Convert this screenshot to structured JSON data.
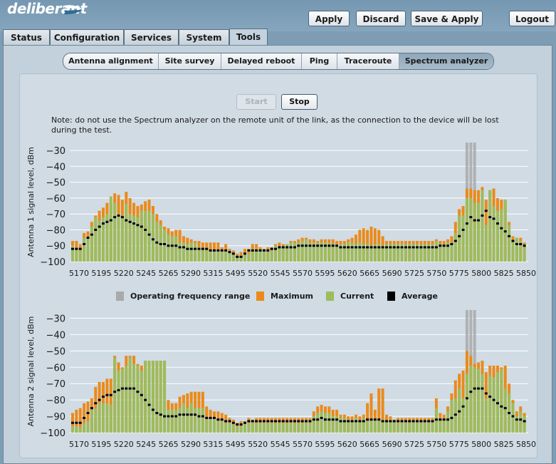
{
  "app": {
    "logo_text": "deliberant"
  },
  "header_buttons": {
    "apply": "Apply",
    "discard": "Discard",
    "save_apply": "Save & Apply",
    "logout": "Logout"
  },
  "main_tabs": [
    "Status",
    "Configuration",
    "Services",
    "System",
    "Tools"
  ],
  "main_tab_active": "Tools",
  "sub_tabs": [
    "Antenna alignment",
    "Site survey",
    "Delayed reboot",
    "Ping",
    "Traceroute",
    "Spectrum analyzer"
  ],
  "sub_tab_active": "Spectrum analyzer",
  "controls": {
    "start": "Start",
    "stop": "Stop",
    "start_enabled": false
  },
  "note": "Note: do not use the Spectrum analyzer on the remote unit of the link, as the connection to the device will be lost during the test.",
  "legend": [
    "Operating frequency range",
    "Maximum",
    "Current",
    "Average"
  ],
  "colors": {
    "operating": "#a9a9a9",
    "maximum": "#ea8a1a",
    "current": "#9dbc5b",
    "average": "#000000",
    "grid": "#ffffff",
    "background": "#d0dbe4"
  },
  "chart_data": [
    {
      "type": "bar",
      "ylabel": "Antenna 1 signal level, dBm",
      "ylim": [
        -100,
        -25
      ],
      "yticks": [
        -30,
        -40,
        -50,
        -60,
        -70,
        -80,
        -90,
        -100
      ],
      "xtick_labels": [
        "5170",
        "5195",
        "5220",
        "5245",
        "5265",
        "5290",
        "5315",
        "5495",
        "5520",
        "5545",
        "5570",
        "5595",
        "5620",
        "5665",
        "5690",
        "5725",
        "5750",
        "5775",
        "5800",
        "5825",
        "5850"
      ],
      "operating_bins": [
        103,
        104,
        105
      ],
      "series": [
        {
          "name": "Maximum",
          "values": [
            -87,
            -87,
            -89,
            -82,
            -81,
            -75,
            -71,
            -68,
            -66,
            -63,
            -63,
            -57,
            -58,
            -61,
            -56,
            -60,
            -63,
            -65,
            -64,
            -62,
            -61,
            -65,
            -70,
            -74,
            -78,
            -79,
            -81,
            -80,
            -80,
            -84,
            -85,
            -86,
            -87,
            -87,
            -88,
            -88,
            -88,
            -88,
            -88,
            -91,
            -89,
            -92,
            -93,
            -95,
            -94,
            -92,
            -92,
            -89,
            -89,
            -91,
            -92,
            -91,
            -91,
            -89,
            -88,
            -89,
            -89,
            -87,
            -87,
            -86,
            -85,
            -85,
            -86,
            -86,
            -87,
            -86,
            -86,
            -86,
            -86,
            -87,
            -87,
            -87,
            -86,
            -85,
            -83,
            -80,
            -79,
            -80,
            -78,
            -79,
            -80,
            -84,
            -87,
            -87,
            -87,
            -87,
            -87,
            -87,
            -87,
            -87,
            -87,
            -87,
            -87,
            -87,
            -87,
            -86,
            -87,
            -87,
            -86,
            -84,
            -75,
            -67,
            -65,
            -54,
            -54,
            -55,
            -55,
            -53,
            -61,
            -55,
            -54,
            -60,
            -61,
            -61,
            -75,
            -84,
            -85,
            -85,
            -88
          ]
        },
        {
          "name": "Current",
          "values": [
            -90,
            -92,
            -93,
            -85,
            -85,
            -78,
            -72,
            -74,
            -72,
            -70,
            -59,
            -63,
            -70,
            -71,
            -64,
            -70,
            -71,
            -72,
            -68,
            -68,
            -68,
            -70,
            -75,
            -77,
            -80,
            -83,
            -84,
            -84,
            -88,
            -88,
            -89,
            -88,
            -88,
            -91,
            -92,
            -91,
            -93,
            -93,
            -93,
            -93,
            -93,
            -93,
            -95,
            -96,
            -96,
            -95,
            -95,
            -92,
            -92,
            -93,
            -93,
            -93,
            -93,
            -90,
            -90,
            -90,
            -89,
            -88,
            -88,
            -88,
            -87,
            -86,
            -88,
            -88,
            -88,
            -88,
            -88,
            -88,
            -89,
            -89,
            -89,
            -89,
            -88,
            -88,
            -89,
            -88,
            -89,
            -89,
            -90,
            -89,
            -89,
            -90,
            -89,
            -89,
            -89,
            -89,
            -89,
            -89,
            -89,
            -89,
            -89,
            -89,
            -89,
            -89,
            -89,
            -87,
            -89,
            -89,
            -88,
            -88,
            -82,
            -71,
            -71,
            -60,
            -60,
            -63,
            -63,
            -55,
            -77,
            -55,
            -65,
            -68,
            -67,
            -61,
            -77,
            -87,
            -85,
            -87,
            -90
          ]
        },
        {
          "name": "Average",
          "values": [
            -92,
            -92,
            -92,
            -89,
            -85,
            -83,
            -80,
            -78,
            -76,
            -75,
            -74,
            -72,
            -71,
            -72,
            -74,
            -75,
            -76,
            -77,
            -78,
            -80,
            -83,
            -86,
            -88,
            -89,
            -89,
            -90,
            -90,
            -90,
            -91,
            -91,
            -92,
            -92,
            -92,
            -92,
            -92,
            -92,
            -93,
            -93,
            -93,
            -93,
            -93,
            -94,
            -95,
            -97,
            -97,
            -95,
            -93,
            -93,
            -93,
            -93,
            -93,
            -93,
            -92,
            -92,
            -91,
            -91,
            -91,
            -91,
            -91,
            -90,
            -90,
            -90,
            -90,
            -90,
            -90,
            -90,
            -90,
            -90,
            -90,
            -90,
            -91,
            -91,
            -91,
            -91,
            -91,
            -91,
            -91,
            -91,
            -91,
            -91,
            -91,
            -91,
            -91,
            -91,
            -91,
            -91,
            -91,
            -91,
            -91,
            -91,
            -91,
            -91,
            -91,
            -91,
            -91,
            -91,
            -90,
            -90,
            -90,
            -89,
            -87,
            -84,
            -80,
            -76,
            -72,
            -74,
            -74,
            -71,
            -68,
            -72,
            -73,
            -76,
            -79,
            -81,
            -84,
            -87,
            -89,
            -89,
            -90
          ]
        }
      ]
    },
    {
      "type": "bar",
      "ylabel": "Antenna 2 signal level, dBm",
      "ylim": [
        -100,
        -25
      ],
      "yticks": [
        -30,
        -40,
        -50,
        -60,
        -70,
        -80,
        -90,
        -100
      ],
      "xtick_labels": [
        "5170",
        "5195",
        "5220",
        "5245",
        "5265",
        "5290",
        "5315",
        "5495",
        "5520",
        "5545",
        "5570",
        "5595",
        "5620",
        "5665",
        "5690",
        "5725",
        "5750",
        "5775",
        "5800",
        "5825",
        "5850"
      ],
      "operating_bins": [
        103,
        104,
        105
      ],
      "series": [
        {
          "name": "Maximum",
          "values": [
            -88,
            -86,
            -85,
            -82,
            -81,
            -79,
            -72,
            -69,
            -69,
            -67,
            -67,
            -53,
            -57,
            -60,
            -53,
            -53,
            -53,
            -58,
            -59,
            -56,
            -56,
            -56,
            -56,
            -56,
            -56,
            -80,
            -82,
            -82,
            -78,
            -77,
            -76,
            -75,
            -75,
            -75,
            -75,
            -84,
            -86,
            -87,
            -87,
            -88,
            -89,
            -91,
            -92,
            -94,
            -93,
            -93,
            -91,
            -92,
            -91,
            -91,
            -91,
            -91,
            -91,
            -91,
            -91,
            -91,
            -91,
            -91,
            -91,
            -91,
            -91,
            -91,
            -91,
            -87,
            -84,
            -83,
            -84,
            -84,
            -86,
            -86,
            -89,
            -89,
            -90,
            -90,
            -89,
            -90,
            -89,
            -82,
            -76,
            -86,
            -73,
            -73,
            -89,
            -90,
            -92,
            -91,
            -91,
            -91,
            -91,
            -91,
            -91,
            -91,
            -91,
            -91,
            -91,
            -79,
            -88,
            -89,
            -84,
            -76,
            -68,
            -64,
            -62,
            -50,
            -53,
            -58,
            -57,
            -56,
            -63,
            -59,
            -59,
            -59,
            -60,
            -59,
            -70,
            -80,
            -87,
            -84,
            -88
          ]
        },
        {
          "name": "Current",
          "values": [
            -96,
            -96,
            -97,
            -94,
            -93,
            -86,
            -85,
            -82,
            -82,
            -82,
            -83,
            -54,
            -62,
            -61,
            -59,
            -54,
            -58,
            -59,
            -62,
            -56,
            -56,
            -56,
            -56,
            -56,
            -56,
            -86,
            -86,
            -86,
            -85,
            -82,
            -85,
            -82,
            -85,
            -85,
            -85,
            -91,
            -91,
            -91,
            -92,
            -93,
            -94,
            -93,
            -95,
            -96,
            -96,
            -94,
            -94,
            -93,
            -94,
            -94,
            -94,
            -94,
            -93,
            -94,
            -94,
            -94,
            -94,
            -94,
            -94,
            -94,
            -94,
            -93,
            -94,
            -90,
            -88,
            -87,
            -88,
            -88,
            -90,
            -90,
            -91,
            -91,
            -92,
            -93,
            -91,
            -93,
            -91,
            -93,
            -92,
            -92,
            -92,
            -92,
            -93,
            -92,
            -93,
            -93,
            -93,
            -93,
            -93,
            -93,
            -93,
            -93,
            -93,
            -93,
            -93,
            -85,
            -91,
            -92,
            -87,
            -80,
            -79,
            -73,
            -79,
            -64,
            -59,
            -60,
            -61,
            -64,
            -79,
            -65,
            -66,
            -63,
            -61,
            -73,
            -76,
            -82,
            -90,
            -87,
            -90
          ]
        },
        {
          "name": "Average",
          "values": [
            -94,
            -94,
            -94,
            -91,
            -88,
            -85,
            -82,
            -80,
            -78,
            -77,
            -77,
            -75,
            -74,
            -73,
            -73,
            -73,
            -73,
            -75,
            -77,
            -80,
            -83,
            -86,
            -88,
            -89,
            -90,
            -90,
            -90,
            -90,
            -89,
            -89,
            -89,
            -89,
            -89,
            -90,
            -90,
            -91,
            -91,
            -91,
            -92,
            -92,
            -93,
            -93,
            -94,
            -95,
            -95,
            -94,
            -93,
            -93,
            -93,
            -93,
            -93,
            -93,
            -93,
            -93,
            -93,
            -93,
            -93,
            -93,
            -93,
            -93,
            -93,
            -93,
            -93,
            -92,
            -92,
            -91,
            -92,
            -92,
            -92,
            -92,
            -93,
            -93,
            -93,
            -93,
            -93,
            -93,
            -93,
            -92,
            -92,
            -92,
            -92,
            -93,
            -93,
            -93,
            -93,
            -93,
            -93,
            -93,
            -93,
            -93,
            -93,
            -93,
            -93,
            -93,
            -93,
            -92,
            -92,
            -92,
            -92,
            -91,
            -89,
            -87,
            -84,
            -79,
            -75,
            -73,
            -73,
            -73,
            -76,
            -78,
            -80,
            -82,
            -84,
            -85,
            -88,
            -90,
            -92,
            -92,
            -93
          ]
        }
      ]
    }
  ]
}
